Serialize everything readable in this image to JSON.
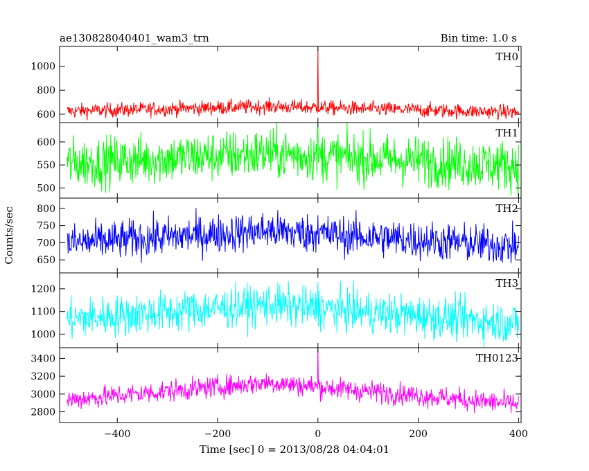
{
  "header": {
    "left_title": "ae130828040401_wam3_trn",
    "right_title": "Bin time: 1.0 s"
  },
  "chart_data": {
    "type": "line",
    "xlabel": "Time [sec] 0 = 2013/08/28 04:04:01",
    "ylabel": "Counts/sec",
    "xlim": [
      -515,
      405
    ],
    "xticks": [
      -400,
      -200,
      0,
      200,
      400
    ],
    "xtick_labels": [
      "−400",
      "−200",
      "0",
      "200",
      "400"
    ],
    "bin_time_s": 1.0,
    "x_range": [
      -500,
      400
    ],
    "panels": [
      {
        "name": "TH0",
        "color": "#ff0000",
        "ylim": [
          530,
          1165
        ],
        "yticks": [
          600,
          800,
          1000
        ],
        "base": 610,
        "peak": 665,
        "noise": 30,
        "spike": {
          "x": 0,
          "y": 1165
        }
      },
      {
        "name": "TH1",
        "color": "#00ff00",
        "ylim": [
          478,
          642
        ],
        "yticks": [
          500,
          550,
          600
        ],
        "base": 545,
        "peak": 575,
        "noise": 27,
        "spike": {
          "x": 0,
          "y": 640
        }
      },
      {
        "name": "TH2",
        "color": "#0000ff",
        "ylim": [
          612,
          830
        ],
        "yticks": [
          650,
          700,
          750,
          800
        ],
        "base": 685,
        "peak": 735,
        "noise": 28,
        "spike": {
          "x": 0,
          "y": 780
        }
      },
      {
        "name": "TH3",
        "color": "#00ffff",
        "ylim": [
          940,
          1270
        ],
        "yticks": [
          1000,
          1100,
          1200
        ],
        "base": 1040,
        "peak": 1130,
        "noise": 45,
        "spike": {
          "x": 0,
          "y": 1230
        }
      },
      {
        "name": "TH0123",
        "color": "#ff00ff",
        "ylim": [
          2680,
          3520
        ],
        "yticks": [
          2800,
          3000,
          3200,
          3400
        ],
        "base": 2860,
        "peak": 3130,
        "noise": 60,
        "spike": {
          "x": 0,
          "y": 3520
        }
      }
    ]
  }
}
